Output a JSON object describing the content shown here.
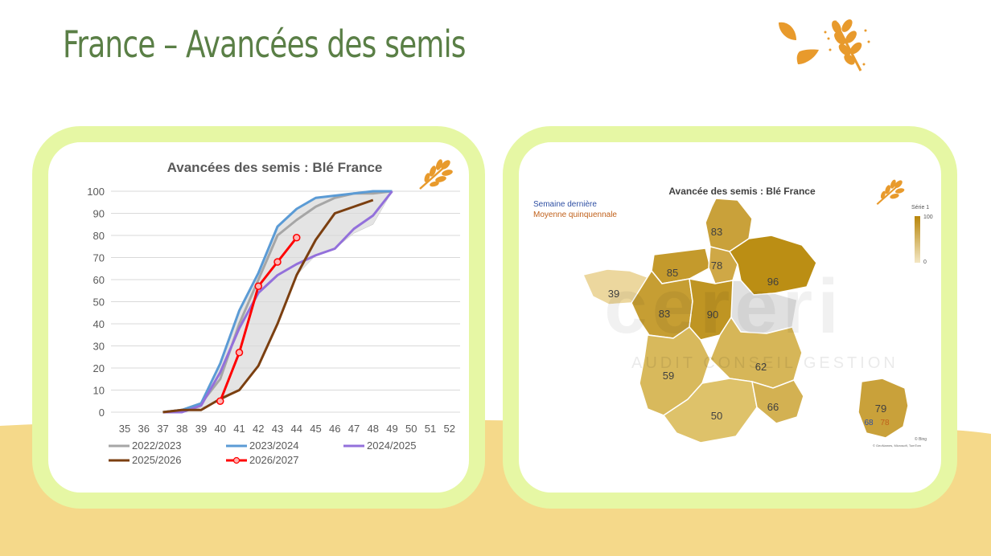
{
  "page": {
    "title": "France – Avancées des semis",
    "colors": {
      "title": "#5a7f46",
      "card_border": "#e6f7a4",
      "ground": "#f5d98a",
      "accent": "#e89a2c"
    }
  },
  "chart_data": [
    {
      "type": "line",
      "title": "Avancées des semis : Blé France",
      "x": [
        35,
        36,
        37,
        38,
        39,
        40,
        41,
        42,
        43,
        44,
        45,
        46,
        47,
        48,
        49,
        50,
        51,
        52
      ],
      "ylim": [
        0,
        100
      ],
      "yticks": [
        0,
        10,
        20,
        30,
        40,
        50,
        60,
        70,
        80,
        90,
        100
      ],
      "grid": true,
      "legend_position": "bottom",
      "band": {
        "x": [
          37,
          38,
          39,
          40,
          41,
          42,
          43,
          44,
          45,
          46,
          47,
          48,
          49
        ],
        "lower": [
          0,
          0,
          2,
          5,
          10,
          21,
          40,
          62,
          71,
          74,
          81,
          85,
          100
        ],
        "upper": [
          0,
          1,
          4,
          22,
          46,
          63,
          84,
          92,
          97,
          98,
          99,
          100,
          100
        ]
      },
      "series": [
        {
          "name": "2022/2023",
          "color": "#a6a6a6",
          "x": [
            37,
            38,
            39,
            40,
            41,
            42,
            43,
            44,
            45,
            46,
            47,
            48,
            49
          ],
          "values": [
            0,
            1,
            4,
            15,
            40,
            60,
            80,
            87,
            93,
            97,
            99,
            99,
            100
          ]
        },
        {
          "name": "2023/2024",
          "color": "#5b9bd5",
          "x": [
            37,
            38,
            39,
            40,
            41,
            42,
            43,
            44,
            45,
            46,
            47,
            48,
            49
          ],
          "values": [
            0,
            1,
            4,
            22,
            46,
            63,
            84,
            92,
            97,
            98,
            99,
            100,
            100
          ]
        },
        {
          "name": "2024/2025",
          "color": "#9370db",
          "x": [
            37,
            38,
            39,
            40,
            41,
            42,
            43,
            44,
            45,
            46,
            47,
            48,
            49
          ],
          "values": [
            0,
            0,
            3,
            18,
            38,
            54,
            62,
            67,
            71,
            74,
            83,
            89,
            100
          ]
        },
        {
          "name": "2025/2026",
          "color": "#7b3f10",
          "x": [
            37,
            38,
            39,
            40,
            41,
            42,
            43,
            44,
            45,
            46,
            47,
            48
          ],
          "values": [
            0,
            1,
            1,
            6,
            10,
            21,
            40,
            62,
            78,
            90,
            93,
            96
          ]
        },
        {
          "name": "2026/2027",
          "color": "#ff0000",
          "marker": "circle",
          "x": [
            40,
            41,
            42,
            43,
            44
          ],
          "values": [
            5,
            27,
            57,
            68,
            79
          ]
        }
      ]
    },
    {
      "type": "choropleth",
      "title": "Avancée des semis : Blé France",
      "legend": {
        "last_week": "Semaine dernière",
        "five_year_avg": "Moyenne quinquennale"
      },
      "scale": {
        "title": "Série 1",
        "min": "0",
        "max": "100",
        "min_color": "#f3e7c4",
        "max_color": "#b8860b"
      },
      "regions": [
        {
          "name": "Hauts-de-France",
          "value": "83",
          "color": "#c9a13a"
        },
        {
          "name": "Normandie",
          "value": "85",
          "color": "#c49a2c"
        },
        {
          "name": "Île-de-France",
          "value": "78",
          "color": "#cfa846"
        },
        {
          "name": "Grand Est",
          "value": "96",
          "color": "#bb8e14"
        },
        {
          "name": "Bretagne",
          "value": "39",
          "color": "#ecd79e"
        },
        {
          "name": "Pays de la Loire",
          "value": "83",
          "color": "#c69e33"
        },
        {
          "name": "Centre-Val de Loire",
          "value": "90",
          "color": "#bf9523"
        },
        {
          "name": "Bourgogne-Franche-Comté",
          "value": "",
          "color": "#e0e0e0"
        },
        {
          "name": "Nouvelle-Aquitaine",
          "value": "59",
          "color": "#d8b95c"
        },
        {
          "name": "Auvergne-Rhône-Alpes",
          "value": "62",
          "color": "#d6b658"
        },
        {
          "name": "Occitanie",
          "value": "50",
          "color": "#deC26a"
        },
        {
          "name": "Provence-Alpes-Côte d'Azur",
          "value": "66",
          "color": "#d3b152"
        }
      ],
      "inset": {
        "value": "79",
        "last_week": "68",
        "average": "78",
        "color": "#c9a13a"
      },
      "credits": {
        "bing": "© Bing",
        "sources": "© GeoNames, Microsoft, TomTom"
      },
      "watermark": {
        "brand": "cereri",
        "tagline": "AUDIT  CONSEIL  GESTION"
      }
    }
  ]
}
